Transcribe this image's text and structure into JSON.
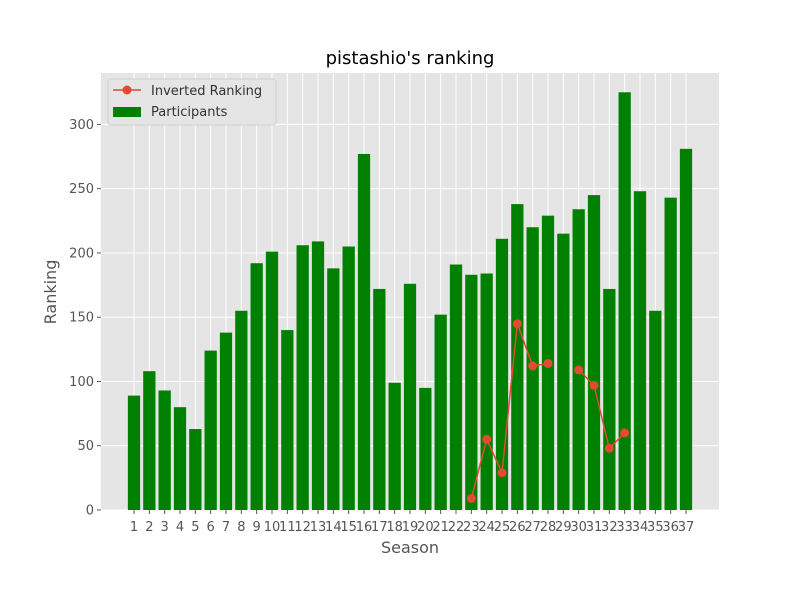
{
  "chart_data": {
    "type": "bar+line",
    "title": "pistashio's ranking",
    "xlabel": "Season",
    "ylabel": "Ranking",
    "ylim": [
      0,
      340
    ],
    "yticks": [
      0,
      50,
      100,
      150,
      200,
      250,
      300
    ],
    "grid": true,
    "legend": "top-left",
    "categories": [
      1,
      2,
      3,
      4,
      5,
      6,
      7,
      8,
      9,
      10,
      11,
      12,
      13,
      14,
      15,
      16,
      17,
      18,
      19,
      20,
      21,
      22,
      23,
      24,
      25,
      26,
      27,
      28,
      29,
      30,
      31,
      32,
      33,
      34,
      35,
      36,
      37
    ],
    "series": [
      {
        "name": "Inverted Ranking",
        "type": "line",
        "color": "#e24a33",
        "values": [
          null,
          null,
          null,
          null,
          null,
          null,
          null,
          null,
          null,
          null,
          null,
          null,
          null,
          null,
          null,
          null,
          null,
          null,
          null,
          null,
          null,
          null,
          9,
          55,
          29,
          145,
          112,
          114,
          null,
          109,
          97,
          48,
          60,
          null,
          null,
          null,
          null
        ]
      },
      {
        "name": "Participants",
        "type": "bar",
        "color": "#008000",
        "values": [
          89,
          108,
          93,
          80,
          63,
          124,
          138,
          155,
          192,
          201,
          140,
          206,
          209,
          188,
          205,
          277,
          172,
          99,
          176,
          95,
          152,
          191,
          183,
          184,
          211,
          238,
          220,
          229,
          215,
          234,
          245,
          172,
          325,
          248,
          155,
          243,
          281
        ]
      }
    ]
  }
}
